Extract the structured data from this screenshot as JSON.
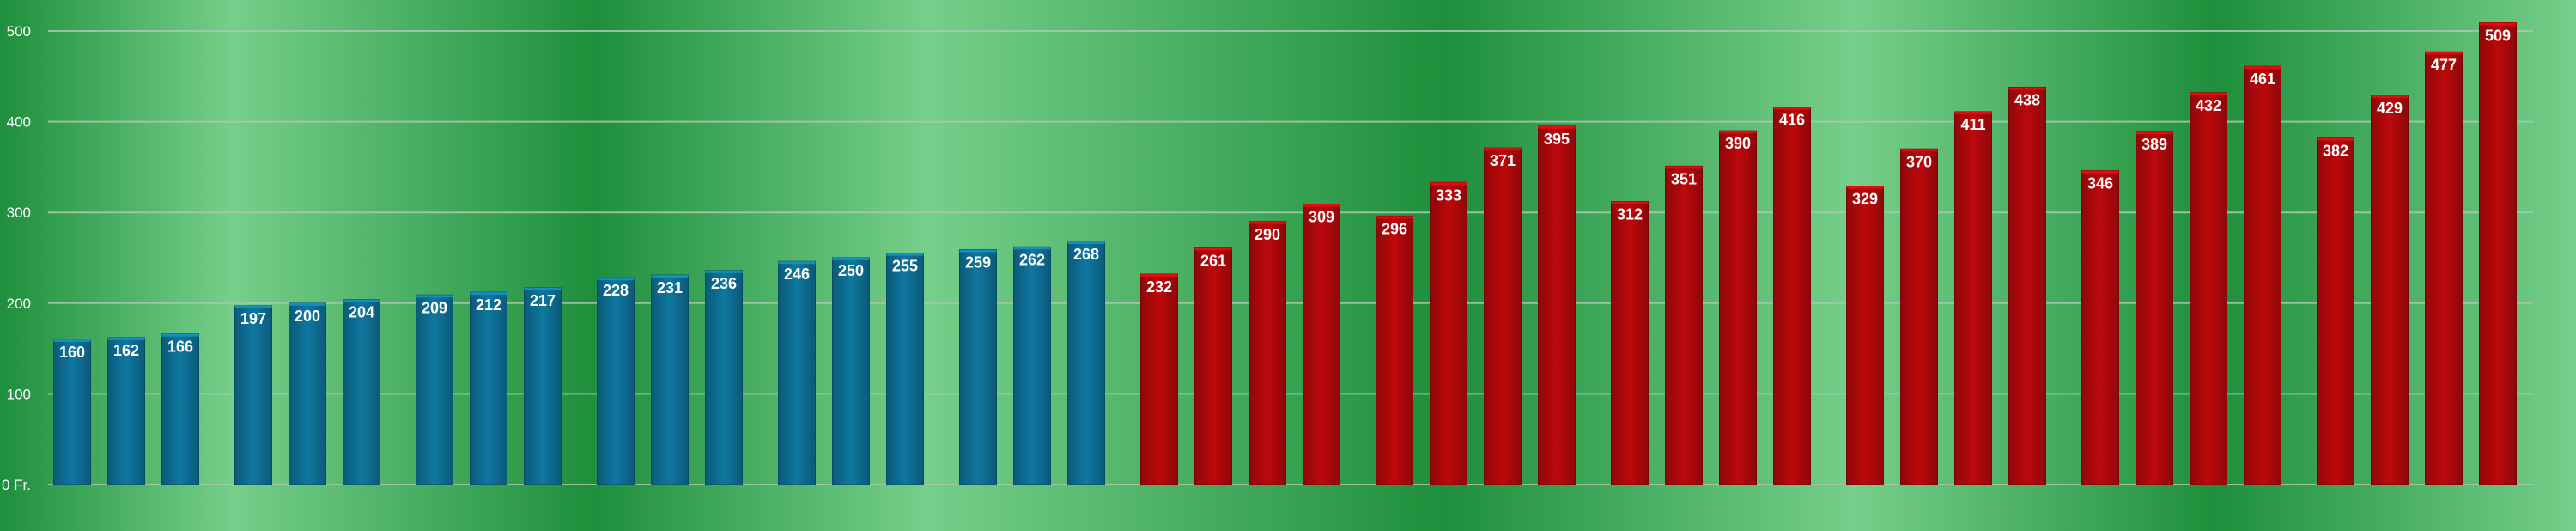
{
  "chart_data": {
    "type": "bar",
    "ylim": [
      0,
      500
    ],
    "y_ticks": [
      {
        "value": 0,
        "label": "0 Fr."
      },
      {
        "value": 100,
        "label": "100"
      },
      {
        "value": 200,
        "label": "200"
      },
      {
        "value": 300,
        "label": "300"
      },
      {
        "value": 400,
        "label": "400"
      },
      {
        "value": 500,
        "label": "500"
      }
    ],
    "grid": true,
    "groups": [
      {
        "series": "blue",
        "values": [
          160,
          162,
          166
        ]
      },
      {
        "series": "blue",
        "values": [
          197,
          200,
          204
        ]
      },
      {
        "series": "blue",
        "values": [
          209,
          212,
          217
        ]
      },
      {
        "series": "blue",
        "values": [
          228,
          231,
          236
        ]
      },
      {
        "series": "blue",
        "values": [
          246,
          250,
          255
        ]
      },
      {
        "series": "blue",
        "values": [
          259,
          262,
          268
        ]
      },
      {
        "series": "red",
        "values": [
          232,
          261,
          290,
          309
        ]
      },
      {
        "series": "red",
        "values": [
          296,
          333,
          371,
          395
        ]
      },
      {
        "series": "red",
        "values": [
          312,
          351,
          390,
          416
        ]
      },
      {
        "series": "red",
        "values": [
          329,
          370,
          411,
          438
        ]
      },
      {
        "series": "red",
        "values": [
          346,
          389,
          432,
          461
        ]
      },
      {
        "series": "red",
        "values": [
          382,
          429,
          477,
          509
        ]
      }
    ],
    "colors": {
      "blue": "#0d6a8e",
      "red": "#a8080a",
      "background_dark": "#1e8f3c",
      "background_light": "#76cf8a",
      "gridline": "#a9c9b0",
      "text": "#ffffff"
    }
  }
}
